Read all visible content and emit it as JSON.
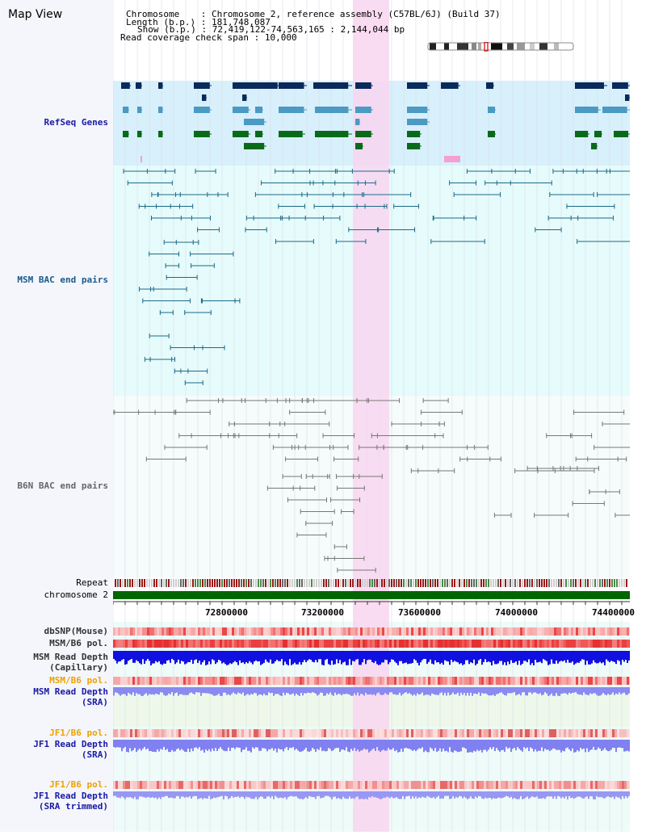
{
  "page": {
    "title": "Map View"
  },
  "header": {
    "chromosome_key": "Chromosome",
    "chromosome_value": "Chromosome 2, reference assembly (C57BL/6J) (Build 37)",
    "length_key": "Length (b.p.)",
    "length_value": "181,748,087",
    "show_key": "Show (b.p.)",
    "show_value": "72,419,122-74,563,165 : 2,144,044 bp",
    "span_key": "Read coverage check span",
    "span_value": "10,000"
  },
  "tracks": {
    "refseq": "RefSeq Genes",
    "msm_bac": "MSM BAC end pairs",
    "b6n_bac": "B6N BAC end pairs",
    "repeat": "Repeat",
    "chromosome": "chromosome 2",
    "dbsnp": "dbSNP(Mouse)",
    "msm_b6_pol_1": "MSM/B6 pol.",
    "msm_depth_cap_1": "MSM Read Depth",
    "msm_depth_cap_2": "(Capillary)",
    "msm_b6_pol_2": "MSM/B6 pol.",
    "msm_depth_sra_1": "MSM Read Depth",
    "msm_depth_sra_2": "(SRA)",
    "jf1_b6_pol_1": "JF1/B6 pol.",
    "jf1_depth_sra_1": "JF1 Read Depth",
    "jf1_depth_sra_2": "(SRA)",
    "jf1_b6_pol_2": "JF1/B6 pol.",
    "jf1_depth_trim_1": "JF1 Read Depth",
    "jf1_depth_trim_2": "(SRA trimmed)"
  },
  "axis": {
    "ticks": [
      "72800000",
      "73200000",
      "73600000",
      "74000000",
      "74400000"
    ]
  },
  "colors": {
    "refseq_bg": "#d8f0fb",
    "bac_bg": "#e6fbfb",
    "highlight": "#f8d6f0",
    "label_blue": "#1a1aa6",
    "label_teal": "#1a5a8a",
    "label_orange": "#f0a000",
    "chromosome_green": "#006600"
  }
}
